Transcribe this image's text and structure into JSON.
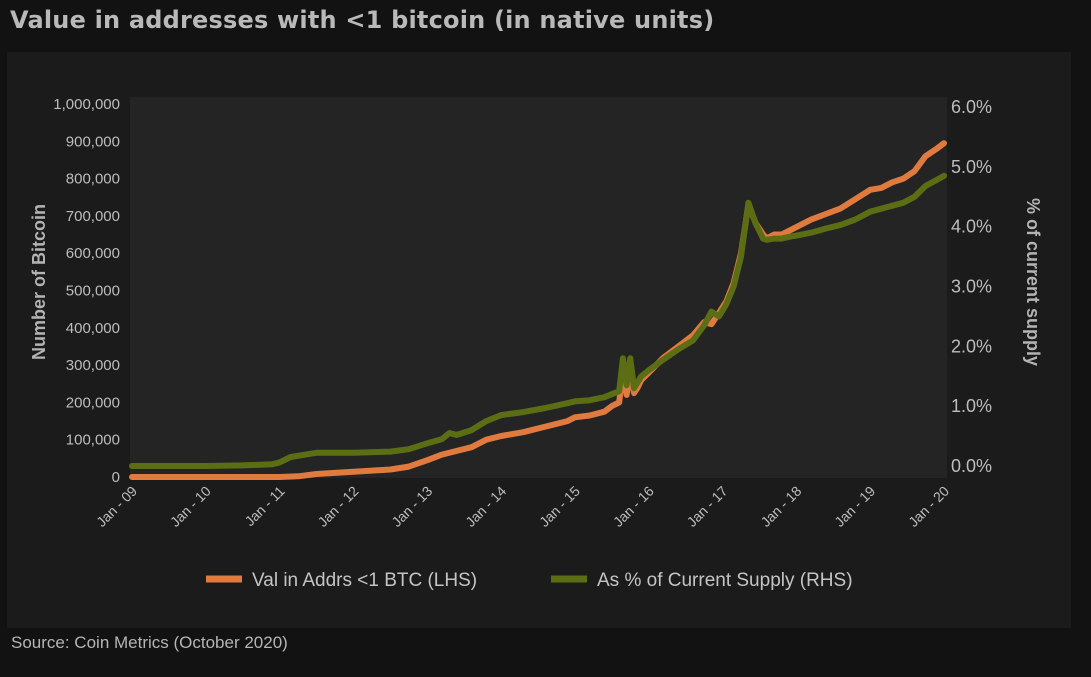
{
  "title": "Value in addresses with <1 bitcoin (in native units)",
  "source": "Source: Coin Metrics (October 2020)",
  "chart_data": {
    "type": "line",
    "title": "Value in addresses with <1 bitcoin (in native units)",
    "ylabel": "Number of Bitcoin",
    "y2label": "% of current supply",
    "ylim": [
      0,
      1000000
    ],
    "y2lim": [
      0,
      6
    ],
    "xlim": [
      2009.0,
      2020.0
    ],
    "x_tick_labels": [
      "Jan - 09",
      "Jan - 10",
      "Jan - 11",
      "Jan - 12",
      "Jan - 13",
      "Jan - 14",
      "Jan - 15",
      "Jan - 16",
      "Jan - 17",
      "Jan - 18",
      "Jan - 19",
      "Jan - 20"
    ],
    "y_tick_labels": [
      "0",
      "100,000",
      "200,000",
      "300,000",
      "400,000",
      "500,000",
      "600,000",
      "700,000",
      "800,000",
      "900,000",
      "1,000,000"
    ],
    "y2_tick_labels": [
      "0.0%",
      "1.0%",
      "2.0%",
      "3.0%",
      "4.0%",
      "5.0%",
      "6.0%"
    ],
    "grid": false,
    "legend_position": "bottom",
    "series": [
      {
        "name": "Val in Addrs <1 BTC (LHS)",
        "axis": "left",
        "color": "#e07a3f",
        "x": [
          2009.0,
          2010.0,
          2011.0,
          2011.25,
          2011.5,
          2012.0,
          2012.5,
          2012.75,
          2013.0,
          2013.2,
          2013.4,
          2013.6,
          2013.8,
          2014.0,
          2014.3,
          2014.6,
          2014.9,
          2015.0,
          2015.2,
          2015.4,
          2015.5,
          2015.6,
          2015.65,
          2015.7,
          2015.75,
          2015.8,
          2015.85,
          2015.9,
          2016.0,
          2016.2,
          2016.4,
          2016.6,
          2016.75,
          2016.85,
          2016.95,
          2017.05,
          2017.15,
          2017.25,
          2017.35,
          2017.45,
          2017.55,
          2017.6,
          2017.7,
          2017.8,
          2017.9,
          2018.0,
          2018.2,
          2018.4,
          2018.6,
          2018.8,
          2019.0,
          2019.15,
          2019.3,
          2019.45,
          2019.6,
          2019.75,
          2019.9,
          2020.0
        ],
        "y": [
          0,
          0,
          0,
          2000,
          8000,
          14000,
          20000,
          28000,
          45000,
          60000,
          70000,
          80000,
          100000,
          110000,
          120000,
          135000,
          150000,
          160000,
          165000,
          175000,
          190000,
          200000,
          290000,
          220000,
          290000,
          225000,
          240000,
          260000,
          280000,
          320000,
          350000,
          380000,
          415000,
          410000,
          440000,
          470000,
          520000,
          600000,
          730000,
          680000,
          650000,
          640000,
          650000,
          650000,
          660000,
          670000,
          690000,
          705000,
          720000,
          745000,
          770000,
          775000,
          790000,
          800000,
          820000,
          860000,
          880000,
          895000
        ]
      },
      {
        "name": "As % of Current Supply (RHS)",
        "axis": "right",
        "color": "#5b6e14",
        "x": [
          2009.0,
          2010.0,
          2010.5,
          2010.9,
          2011.0,
          2011.15,
          2011.3,
          2011.5,
          2012.0,
          2012.5,
          2012.75,
          2013.0,
          2013.2,
          2013.3,
          2013.4,
          2013.6,
          2013.8,
          2014.0,
          2014.3,
          2014.6,
          2014.9,
          2015.0,
          2015.2,
          2015.4,
          2015.5,
          2015.6,
          2015.65,
          2015.7,
          2015.75,
          2015.8,
          2015.85,
          2015.9,
          2016.0,
          2016.2,
          2016.4,
          2016.6,
          2016.75,
          2016.85,
          2016.95,
          2017.05,
          2017.15,
          2017.25,
          2017.35,
          2017.45,
          2017.55,
          2017.6,
          2017.7,
          2017.8,
          2017.9,
          2018.0,
          2018.2,
          2018.4,
          2018.6,
          2018.8,
          2019.0,
          2019.15,
          2019.3,
          2019.45,
          2019.6,
          2019.75,
          2019.9,
          2020.0
        ],
        "y": [
          0.0,
          0.0,
          0.01,
          0.03,
          0.06,
          0.15,
          0.18,
          0.22,
          0.22,
          0.24,
          0.28,
          0.38,
          0.45,
          0.55,
          0.52,
          0.6,
          0.75,
          0.85,
          0.9,
          0.97,
          1.05,
          1.08,
          1.1,
          1.15,
          1.2,
          1.25,
          1.8,
          1.35,
          1.8,
          1.3,
          1.4,
          1.5,
          1.6,
          1.78,
          1.95,
          2.1,
          2.35,
          2.58,
          2.5,
          2.7,
          3.0,
          3.5,
          4.4,
          4.05,
          3.8,
          3.78,
          3.8,
          3.8,
          3.83,
          3.85,
          3.9,
          3.97,
          4.03,
          4.12,
          4.25,
          4.3,
          4.35,
          4.4,
          4.5,
          4.68,
          4.78,
          4.85
        ]
      }
    ]
  }
}
